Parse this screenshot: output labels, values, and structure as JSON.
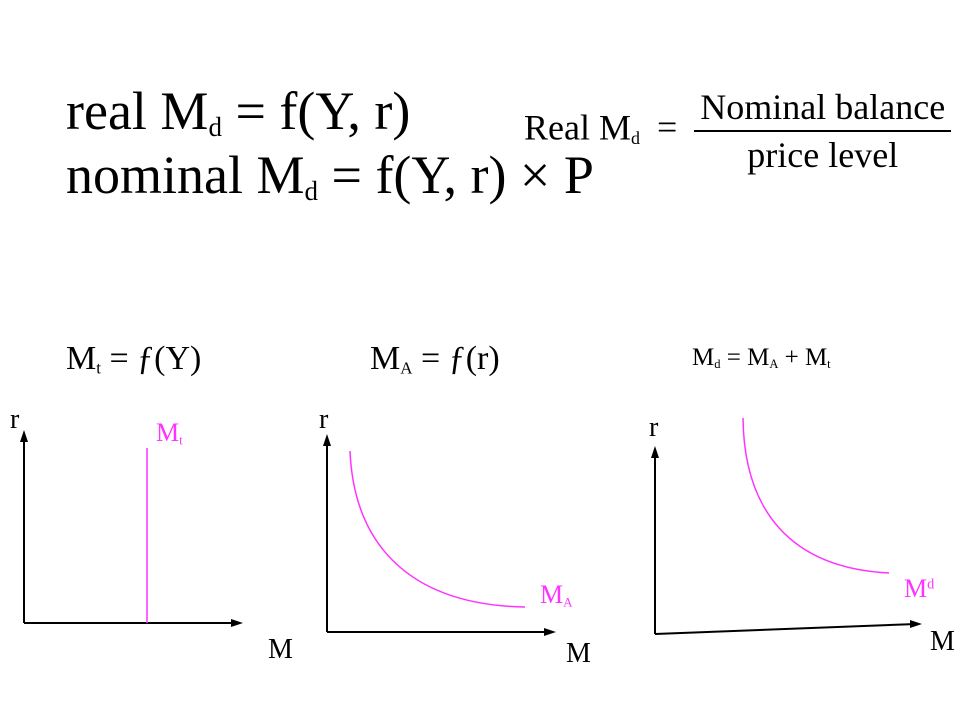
{
  "colors": {
    "axis": "#000000",
    "curve": "#ff33ff",
    "background": "#ffffff"
  },
  "equations": {
    "real": {
      "lhs": "real M",
      "sub": "d",
      "rhs": "= f(Y, r)"
    },
    "nominal": {
      "lhs": "nominal M",
      "sub": "d",
      "rhs": "= f(Y, r) × P"
    },
    "fraction": {
      "lhs": "Real M",
      "sub": "d",
      "eq": "=",
      "numerator": "Nominal balance",
      "denominator": "price level"
    }
  },
  "graphs": [
    {
      "title_main": "M",
      "title_sub": "t",
      "title_rest": " = ƒ(Y)",
      "y_label": "r",
      "x_label": "M",
      "curve_main": "M",
      "curve_sub": "t",
      "curve_shape": "vertical line"
    },
    {
      "title_main": "M",
      "title_sub": "A",
      "title_rest": " = ƒ(r)",
      "y_label": "r",
      "x_label": "M",
      "curve_main": "M",
      "curve_sub": "A",
      "curve_shape": "downward convex curve"
    },
    {
      "title_main": "M",
      "title_sub": "d",
      "title_rest": " =  M",
      "title_sub2": "A",
      "title_rest2": " + M",
      "title_sub3": "t",
      "y_label": "r",
      "x_label": "M",
      "curve_main": "M",
      "curve_sup": "d",
      "curve_shape": "downward convex curve"
    }
  ]
}
